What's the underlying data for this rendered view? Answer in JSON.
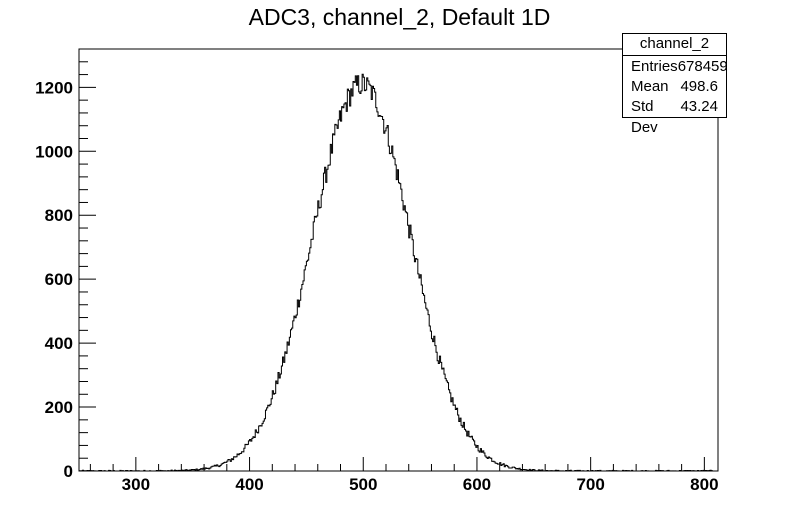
{
  "chart_data": {
    "type": "bar",
    "title": "ADC3, channel_2, Default 1D",
    "xlabel": "",
    "ylabel": "",
    "xlim": [
      250,
      812
    ],
    "ylim": [
      0,
      1320
    ],
    "x_ticks": [
      300,
      400,
      500,
      600,
      700,
      800
    ],
    "y_ticks": [
      0,
      200,
      400,
      600,
      800,
      1000,
      1200
    ],
    "x_tick_labels": [
      "300",
      "400",
      "500",
      "600",
      "700",
      "800"
    ],
    "y_tick_labels": [
      "0",
      "200",
      "400",
      "600",
      "800",
      "1000",
      "1200"
    ],
    "histogram": {
      "distribution": "gaussian",
      "entries": 678459,
      "mean": 498.6,
      "std_dev": 43.24,
      "peak": 1210,
      "bin_width": 1
    },
    "stats_box": {
      "name": "channel_2",
      "rows": [
        {
          "label": "Entries",
          "value": "678459"
        },
        {
          "label": "Mean",
          "value": "498.6"
        },
        {
          "label": "Std Dev",
          "value": "43.24"
        }
      ]
    }
  }
}
